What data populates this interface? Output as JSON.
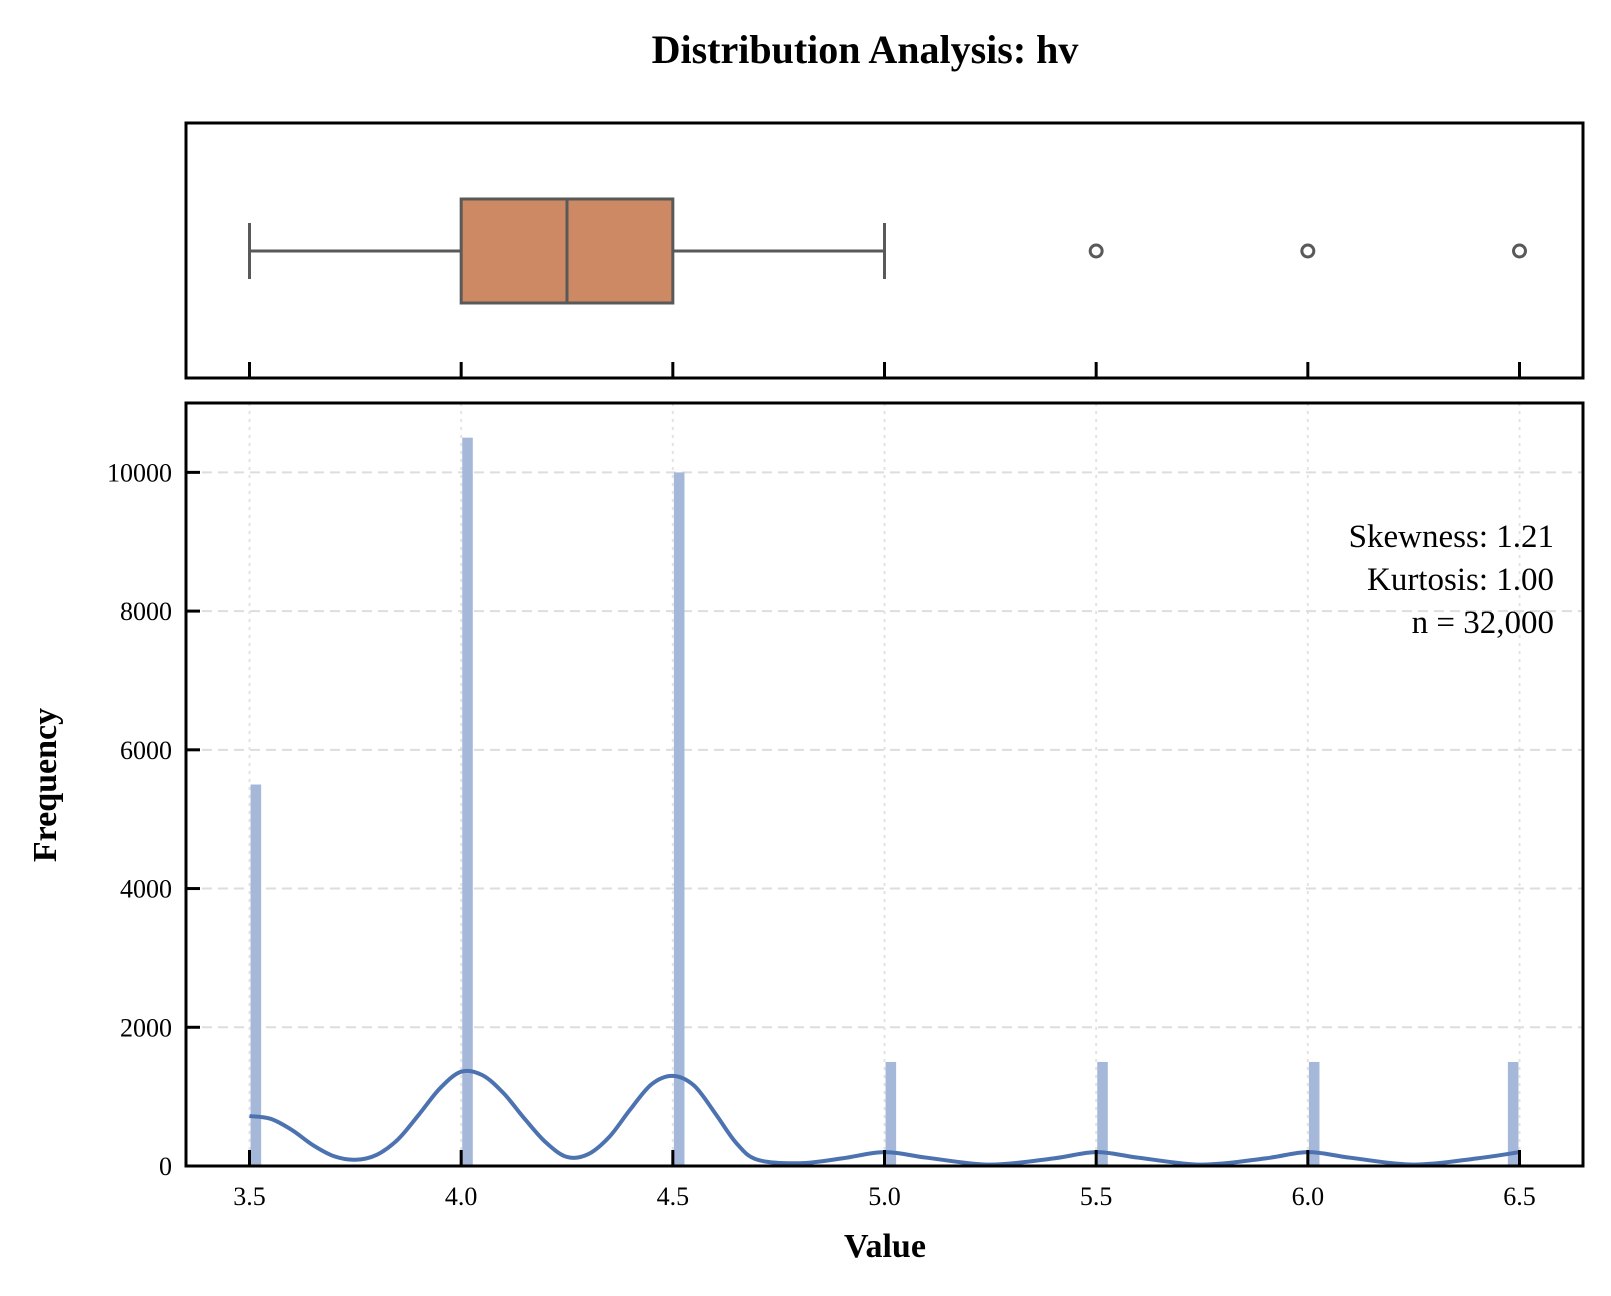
{
  "chart_data": {
    "title": "Distribution Analysis: hv",
    "type": "histogram",
    "xlabel": "Value",
    "ylabel": "Frequency",
    "xlim": [
      3.35,
      6.65
    ],
    "ylim": [
      0,
      11000
    ],
    "x_ticks": [
      "3.5",
      "4.0",
      "4.5",
      "5.0",
      "5.5",
      "6.0",
      "6.5"
    ],
    "y_ticks": [
      "0",
      "2000",
      "4000",
      "6000",
      "8000",
      "10000"
    ],
    "grid": true,
    "histogram": {
      "color": "#a6b8d9",
      "bars": [
        {
          "x": 3.515,
          "value": 5500
        },
        {
          "x": 4.015,
          "value": 10500
        },
        {
          "x": 4.515,
          "value": 10000
        },
        {
          "x": 5.015,
          "value": 1500
        },
        {
          "x": 5.515,
          "value": 1500
        },
        {
          "x": 6.015,
          "value": 1500
        },
        {
          "x": 6.485,
          "value": 1500
        }
      ]
    },
    "kde": {
      "color": "#4c72b0",
      "points": [
        [
          3.5,
          720
        ],
        [
          3.55,
          680
        ],
        [
          3.6,
          520
        ],
        [
          3.65,
          300
        ],
        [
          3.7,
          140
        ],
        [
          3.75,
          90
        ],
        [
          3.8,
          160
        ],
        [
          3.85,
          380
        ],
        [
          3.9,
          740
        ],
        [
          3.95,
          1120
        ],
        [
          4.0,
          1360
        ],
        [
          4.05,
          1310
        ],
        [
          4.1,
          1050
        ],
        [
          4.15,
          680
        ],
        [
          4.2,
          340
        ],
        [
          4.25,
          130
        ],
        [
          4.3,
          170
        ],
        [
          4.35,
          420
        ],
        [
          4.4,
          820
        ],
        [
          4.45,
          1180
        ],
        [
          4.5,
          1300
        ],
        [
          4.55,
          1160
        ],
        [
          4.6,
          760
        ],
        [
          4.65,
          330
        ],
        [
          4.7,
          90
        ],
        [
          4.8,
          40
        ],
        [
          4.9,
          110
        ],
        [
          5.0,
          200
        ],
        [
          5.1,
          120
        ],
        [
          5.25,
          20
        ],
        [
          5.4,
          110
        ],
        [
          5.5,
          200
        ],
        [
          5.6,
          120
        ],
        [
          5.75,
          20
        ],
        [
          5.9,
          110
        ],
        [
          6.0,
          200
        ],
        [
          6.1,
          120
        ],
        [
          6.25,
          20
        ],
        [
          6.4,
          110
        ],
        [
          6.5,
          200
        ]
      ]
    },
    "boxplot": {
      "color": "#cc8963",
      "whisker_low": 3.5,
      "q1": 4.0,
      "median": 4.25,
      "q3": 4.5,
      "whisker_high": 5.0,
      "outliers": [
        5.5,
        6.0,
        6.5
      ]
    },
    "stats": {
      "skewness": "Skewness: 1.21",
      "kurtosis": "Kurtosis: 1.00",
      "n": "n = 32,000"
    }
  }
}
